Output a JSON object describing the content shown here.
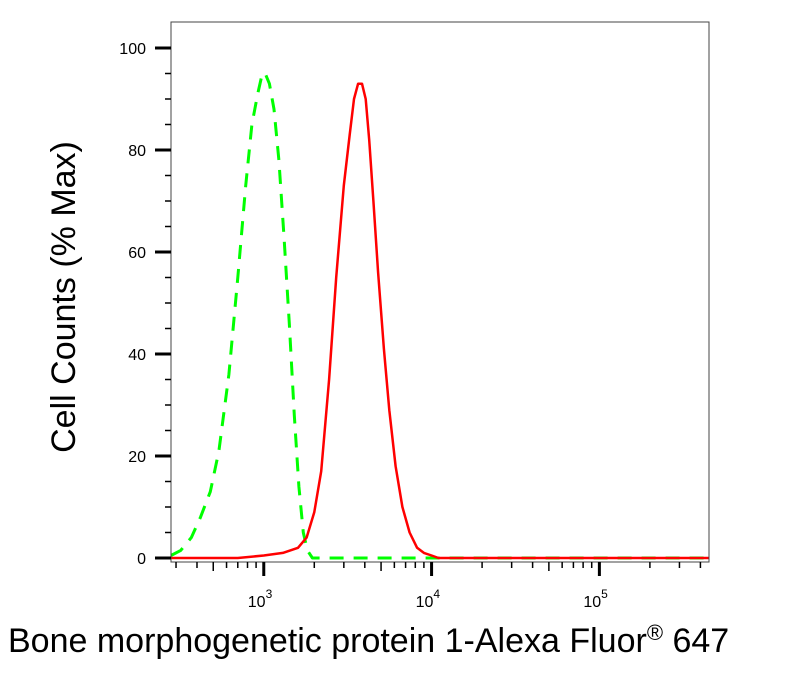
{
  "chart_data": {
    "type": "line",
    "xlabel": "Bone morphogenetic protein 1-Alexa Fluor",
    "xlabel_superscript": "®",
    "xlabel_suffix": " 647",
    "ylabel": "Cell Counts (% Max)",
    "x_scale": "log",
    "xlim": [
      280,
      450000
    ],
    "ylim": [
      0,
      105
    ],
    "y_ticks": [
      0,
      20,
      40,
      60,
      80,
      100
    ],
    "y_tick_labels": [
      "0",
      "20",
      "40",
      "60",
      "80",
      "100"
    ],
    "x_ticks": [
      1000,
      10000,
      100000
    ],
    "x_tick_labels": [
      {
        "base": "10",
        "exp": "3"
      },
      {
        "base": "10",
        "exp": "4"
      },
      {
        "base": "10",
        "exp": "5"
      }
    ],
    "grid": false,
    "series": [
      {
        "color": "#00ff00",
        "style": "dashed",
        "x": [
          280,
          320,
          370,
          420,
          480,
          540,
          620,
          700,
          780,
          850,
          920,
          980,
          1020,
          1080,
          1150,
          1230,
          1320,
          1420,
          1520,
          1620,
          1720,
          1820,
          1950,
          2200,
          3000,
          10000,
          100000,
          450000
        ],
        "y": [
          0.5,
          1.5,
          4,
          8,
          13,
          21,
          36,
          55,
          73,
          85,
          91,
          95,
          95,
          93,
          88,
          78,
          63,
          46,
          28,
          14,
          5,
          1.5,
          0,
          0,
          0,
          0,
          0,
          0
        ]
      },
      {
        "color": "#ff0000",
        "style": "solid",
        "x": [
          280,
          700,
          1000,
          1300,
          1600,
          1800,
          2000,
          2200,
          2450,
          2700,
          3000,
          3250,
          3450,
          3650,
          3850,
          4050,
          4250,
          4500,
          4800,
          5200,
          5600,
          6100,
          6700,
          7400,
          8200,
          9000,
          10000,
          11000,
          13000,
          20000,
          100000,
          450000
        ],
        "y": [
          0,
          0,
          0.5,
          1,
          2,
          4,
          9,
          17,
          35,
          55,
          73,
          83,
          90,
          93,
          93,
          90,
          82,
          70,
          56,
          41,
          29,
          18,
          10,
          5,
          2,
          1,
          0.5,
          0,
          0,
          0,
          0,
          0
        ]
      }
    ]
  }
}
